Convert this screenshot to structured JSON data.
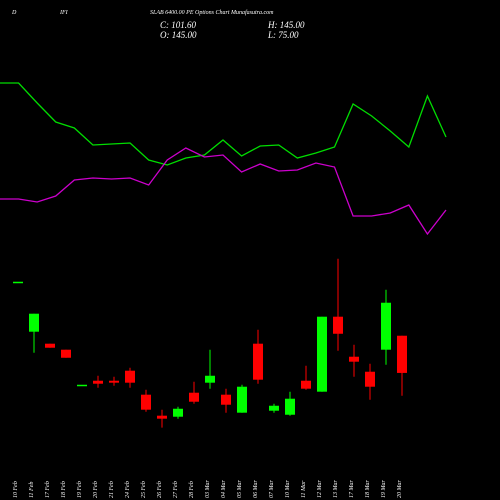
{
  "chart_data": {
    "type": "candlestick",
    "title_left": "D",
    "title_mid": "IFI",
    "title": "SLAB 6400.00 PE Options Chart Munafasutra.com",
    "ohlc_labels": {
      "close": "C: 101.60",
      "high": "H: 145.00",
      "open": "O: 145.00",
      "low": "L: 75.00"
    },
    "categories": [
      "10 Feb",
      "11 Feb",
      "17 Feb",
      "18 Feb",
      "19 Feb",
      "20 Feb",
      "21 Feb",
      "24 Feb",
      "25 Feb",
      "26 Feb",
      "27 Feb",
      "28 Feb",
      "03 Mar",
      "04 Mar",
      "05 Mar",
      "06 Mar",
      "07 Mar",
      "10 Mar",
      "11 Mar",
      "12 Mar",
      "13 Mar",
      "17 Mar",
      "18 Mar",
      "19 Mar",
      "20 Mar"
    ],
    "open": [
      208,
      149.7,
      135.7,
      128.7,
      87.8,
      92.5,
      92.5,
      104.2,
      76.2,
      51.7,
      50.5,
      78.5,
      90.2,
      76.2,
      55.2,
      135.7,
      57.5,
      52.8,
      92.5,
      79.7,
      167.2,
      120.5,
      103,
      128.7,
      145
    ],
    "high": [
      208,
      170.7,
      135.7,
      128.7,
      87.8,
      98.3,
      97.2,
      107.7,
      82,
      58.7,
      62.2,
      91.3,
      128.7,
      83.2,
      87.8,
      152,
      65.7,
      79.7,
      110,
      167.2,
      234.8,
      134.5,
      112.3,
      198.7,
      145
    ],
    "low": [
      208,
      125.2,
      131,
      119.3,
      87.8,
      84.3,
      86.7,
      84.3,
      56.3,
      37.7,
      48.2,
      65.7,
      83.2,
      55.2,
      55.2,
      89,
      55.2,
      51.7,
      82,
      79.7,
      127.5,
      97.2,
      70.3,
      111.2,
      75
    ],
    "close": [
      208,
      170.7,
      131,
      119.3,
      87.8,
      89,
      90.2,
      90.2,
      58.7,
      48.2,
      59.8,
      68,
      98.3,
      64.5,
      85.5,
      93.7,
      63.3,
      71.5,
      83.2,
      167.2,
      147.3,
      114.7,
      85.5,
      183.5,
      101.6
    ],
    "up_color": "#00ff00",
    "down_color": "#ff0000",
    "ylim": [
      35,
      235
    ],
    "lines": {
      "ylim": [
        0,
        300
      ],
      "series": [
        {
          "color": "#00dd00",
          "values": [
            217,
            217,
            197,
            178,
            172,
            155,
            156,
            157,
            140,
            135,
            142,
            145,
            160,
            144,
            154,
            155,
            142,
            147,
            153,
            196,
            184,
            169,
            153,
            204,
            163
          ]
        },
        {
          "color": "#cc00cc",
          "values": [
            101,
            101,
            98,
            104,
            120,
            122,
            121,
            122,
            115,
            140,
            152,
            143,
            145,
            128,
            136,
            129,
            130,
            137,
            133,
            84,
            84,
            87,
            95,
            66,
            90
          ]
        }
      ]
    }
  }
}
